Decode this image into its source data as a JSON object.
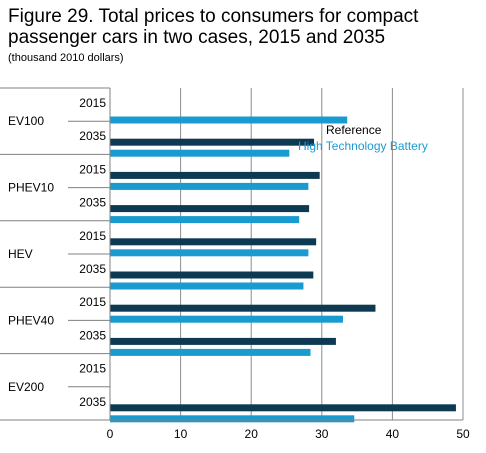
{
  "chart_data": {
    "type": "bar",
    "orientation": "horizontal",
    "title": "Figure 29. Total prices to consumers for compact passenger cars in two cases, 2015 and 2035",
    "subtitle": "(thousand 2010 dollars)",
    "xlim": [
      0,
      50
    ],
    "xticks": [
      "0",
      "10",
      "20",
      "30",
      "40",
      "50"
    ],
    "grid": true,
    "legend_position": "inside-top-right",
    "groups": [
      {
        "label": "EV100",
        "years": [
          "2015",
          "2035"
        ]
      },
      {
        "label": "PHEV10",
        "years": [
          "2015",
          "2035"
        ]
      },
      {
        "label": "HEV",
        "years": [
          "2015",
          "2035"
        ]
      },
      {
        "label": "PHEV40",
        "years": [
          "2015",
          "2035"
        ]
      },
      {
        "label": "EV200",
        "years": [
          "2015",
          "2035"
        ]
      }
    ],
    "series": [
      {
        "name": "Reference",
        "color": "#0d3a52",
        "values": [
          [
            null,
            28.9
          ],
          [
            29.7,
            28.2
          ],
          [
            29.2,
            28.8
          ],
          [
            37.6,
            32.0
          ],
          [
            null,
            49.0
          ]
        ]
      },
      {
        "name": "High Technology Battery",
        "color": "#1a9bd0",
        "values": [
          [
            33.6,
            25.4
          ],
          [
            28.1,
            26.8
          ],
          [
            28.1,
            27.4
          ],
          [
            33.0,
            28.4
          ],
          [
            null,
            34.6
          ]
        ]
      }
    ]
  }
}
